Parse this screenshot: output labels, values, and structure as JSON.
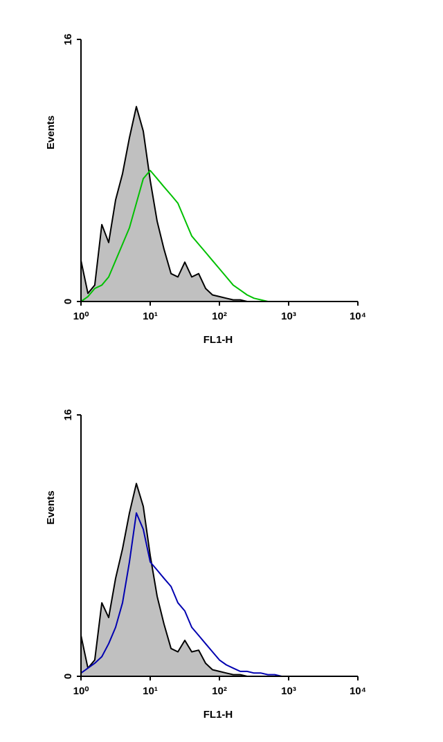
{
  "chart_data": [
    {
      "type": "line",
      "xlabel": "FL1-H",
      "ylabel": "Events",
      "xscale": "log",
      "xlim": [
        1,
        10000
      ],
      "ylim": [
        0,
        16
      ],
      "xticks": [
        {
          "value": 1,
          "label": "10⁰"
        },
        {
          "value": 10,
          "label": "10¹"
        },
        {
          "value": 100,
          "label": "10²"
        },
        {
          "value": 1000,
          "label": "10³"
        },
        {
          "value": 10000,
          "label": "10⁴"
        }
      ],
      "yticks": [
        0,
        16
      ],
      "x": [
        1,
        1.26,
        1.58,
        2,
        2.51,
        3.16,
        3.98,
        5.01,
        6.31,
        7.94,
        10,
        12.6,
        15.8,
        20,
        25.1,
        31.6,
        39.8,
        50.1,
        63.1,
        79.4,
        100,
        126,
        158,
        200,
        251,
        316,
        398,
        501,
        631,
        794,
        1000
      ],
      "series": [
        {
          "color": "#000000",
          "fill": "#c0c0c0",
          "values": [
            2.5,
            0.5,
            1.0,
            4.7,
            3.6,
            6.2,
            7.8,
            10,
            11.9,
            10.4,
            7.4,
            4.9,
            3.2,
            1.7,
            1.5,
            2.4,
            1.5,
            1.7,
            0.8,
            0.4,
            0.3,
            0.2,
            0.1,
            0.1,
            0,
            0,
            0,
            0,
            0,
            0,
            0
          ]
        },
        {
          "color": "#00c000",
          "values": [
            0,
            0.3,
            0.8,
            1.0,
            1.5,
            2.5,
            3.5,
            4.5,
            6.0,
            7.5,
            8.0,
            7.5,
            7.0,
            6.5,
            6.0,
            5.0,
            4.0,
            3.5,
            3.0,
            2.5,
            2.0,
            1.5,
            1.0,
            0.7,
            0.4,
            0.2,
            0.1,
            0,
            0,
            0,
            0
          ]
        }
      ]
    },
    {
      "type": "line",
      "xlabel": "FL1-H",
      "ylabel": "Events",
      "xscale": "log",
      "xlim": [
        1,
        10000
      ],
      "ylim": [
        0,
        16
      ],
      "xticks": [
        {
          "value": 1,
          "label": "10⁰"
        },
        {
          "value": 10,
          "label": "10¹"
        },
        {
          "value": 100,
          "label": "10²"
        },
        {
          "value": 1000,
          "label": "10³"
        },
        {
          "value": 10000,
          "label": "10⁴"
        }
      ],
      "yticks": [
        0,
        16
      ],
      "x": [
        1,
        1.26,
        1.58,
        2,
        2.51,
        3.16,
        3.98,
        5.01,
        6.31,
        7.94,
        10,
        12.6,
        15.8,
        20,
        25.1,
        31.6,
        39.8,
        50.1,
        63.1,
        79.4,
        100,
        126,
        158,
        200,
        251,
        316,
        398,
        501,
        631,
        794,
        1000
      ],
      "series": [
        {
          "color": "#000000",
          "fill": "#c0c0c0",
          "values": [
            2.5,
            0.5,
            1.0,
            4.5,
            3.6,
            6.0,
            7.8,
            10,
            11.8,
            10.4,
            7.4,
            4.9,
            3.2,
            1.7,
            1.5,
            2.2,
            1.5,
            1.6,
            0.8,
            0.4,
            0.3,
            0.2,
            0.1,
            0.1,
            0,
            0,
            0,
            0,
            0,
            0,
            0
          ]
        },
        {
          "color": "#0000b0",
          "values": [
            0.2,
            0.5,
            0.8,
            1.2,
            2.0,
            3.0,
            4.5,
            7.0,
            10.0,
            9.0,
            7.0,
            6.5,
            6.0,
            5.5,
            4.5,
            4.0,
            3.0,
            2.5,
            2.0,
            1.5,
            1.0,
            0.7,
            0.5,
            0.3,
            0.3,
            0.2,
            0.2,
            0.1,
            0.1,
            0,
            0
          ]
        }
      ]
    }
  ]
}
